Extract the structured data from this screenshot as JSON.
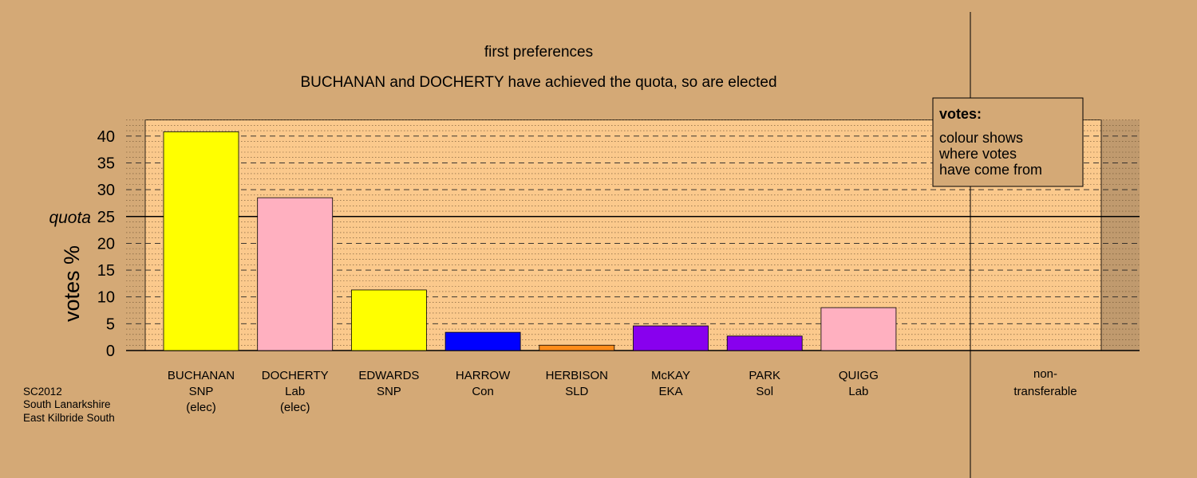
{
  "chart_data": {
    "type": "bar",
    "title": "first preferences",
    "subtitle": "BUCHANAN and DOCHERTY have achieved the quota, so are elected",
    "ylabel": "votes %",
    "ylim": [
      0,
      43
    ],
    "yticks": [
      0,
      5,
      10,
      15,
      20,
      25,
      30,
      35,
      40
    ],
    "quota": 25,
    "quota_label": "quota",
    "grid": "dashed major lines every 5, dotted minor lines every 1",
    "candidates": [
      {
        "name": "BUCHANAN",
        "party": "SNP",
        "status": "(elec)",
        "value": 40.8,
        "color": "#ffff00"
      },
      {
        "name": "DOCHERTY",
        "party": "Lab",
        "status": "(elec)",
        "value": 28.5,
        "color": "#ffb0c0"
      },
      {
        "name": "EDWARDS",
        "party": "SNP",
        "status": "",
        "value": 11.3,
        "color": "#ffff00"
      },
      {
        "name": "HARROW",
        "party": "Con",
        "status": "",
        "value": 3.4,
        "color": "#0000ff"
      },
      {
        "name": "HERBISON",
        "party": "SLD",
        "status": "",
        "value": 1.0,
        "color": "#ff8c1a"
      },
      {
        "name": "McKAY",
        "party": "EKA",
        "status": "",
        "value": 4.6,
        "color": "#8800ee"
      },
      {
        "name": "PARK",
        "party": "Sol",
        "status": "",
        "value": 2.7,
        "color": "#8800ee"
      },
      {
        "name": "QUIGG",
        "party": "Lab",
        "status": "",
        "value": 8.0,
        "color": "#ffb0c0"
      }
    ],
    "non_transferable": {
      "label_line1": "non-",
      "label_line2": "transferable",
      "value": 0
    }
  },
  "legend": {
    "title": "votes:",
    "lines": [
      "colour shows",
      "where votes",
      "have come from"
    ],
    "position": "top-right"
  },
  "footer": {
    "lines": [
      "SC2012",
      "South Lanarkshire",
      "East Kilbride South"
    ]
  },
  "colors": {
    "background": "#d4a976",
    "plot_fill": "#fbc98c",
    "plot_shadow": "#c09a6e"
  }
}
